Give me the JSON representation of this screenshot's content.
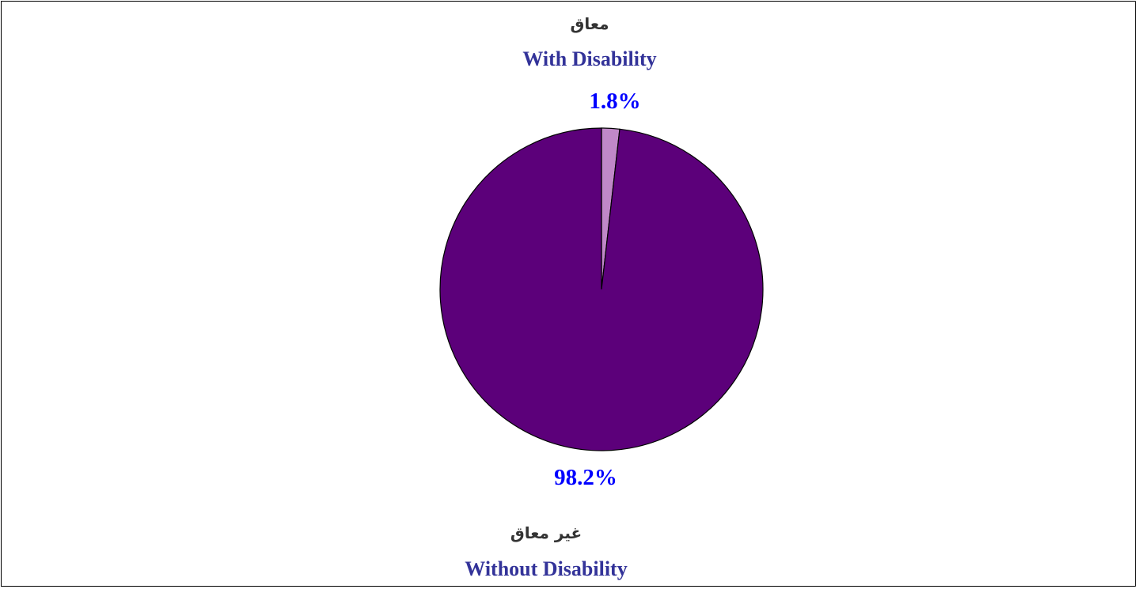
{
  "chart_data": {
    "type": "pie",
    "slices": [
      {
        "label_ar": "معاق",
        "label_en": "With Disability",
        "value": 1.8,
        "value_label": "1.8%",
        "color": "#c088c8"
      },
      {
        "label_ar": "غير معاق",
        "label_en": "Without Disability",
        "value": 98.2,
        "value_label": "98.2%",
        "color": "#5c007a"
      }
    ],
    "start_angle": "12 o'clock",
    "direction": "clockwise",
    "legend": "none",
    "outline_color": "#000000"
  }
}
